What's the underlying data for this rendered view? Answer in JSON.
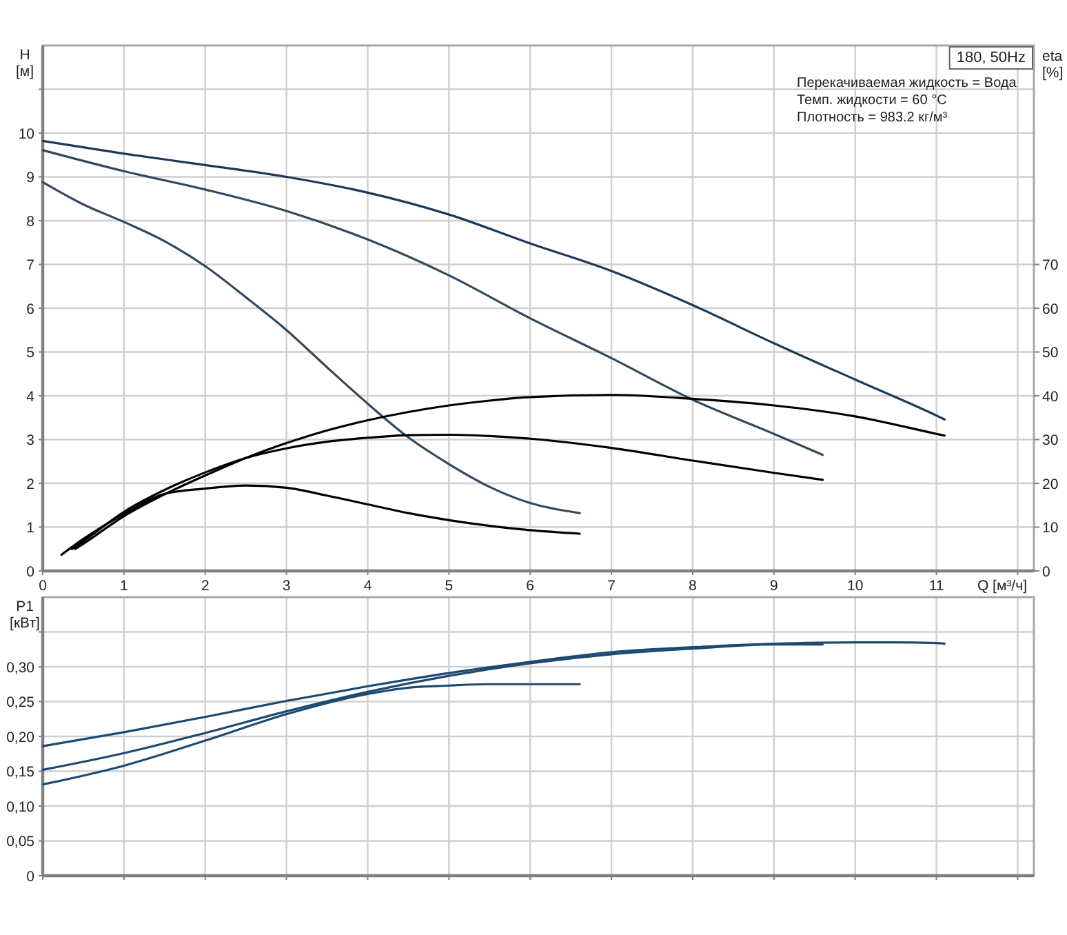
{
  "chart_data": [
    {
      "type": "line",
      "title": "180, 50Hz",
      "xlabel": "Q [м³/ч]",
      "ylabel": "H\n[м]",
      "y2label": "eta\n[%]",
      "annotations": [
        "Перекачиваемая жидкость = Вода",
        "Темп. жидкости = 60 °C",
        "Плотность = 983.2 кг/м³"
      ],
      "xlim": [
        0,
        12.2
      ],
      "xticks": [
        0,
        1,
        2,
        3,
        4,
        5,
        6,
        7,
        8,
        9,
        10,
        11,
        {
          "value": 12,
          "label": null
        }
      ],
      "ylim": [
        0,
        12
      ],
      "yticks": [
        0,
        1,
        2,
        3,
        4,
        5,
        6,
        7,
        8,
        9,
        10,
        {
          "value": 11,
          "label": null
        }
      ],
      "y2lim": [
        0,
        120
      ],
      "y2ticks": [
        0,
        10,
        20,
        30,
        40,
        50,
        60,
        70
      ],
      "grid": true,
      "series": [
        {
          "color": "#1b3a5a",
          "x": [
            0,
            1,
            2,
            3,
            4,
            5,
            6,
            7,
            8,
            9,
            10,
            11,
            11.1
          ],
          "values": [
            9.82,
            9.53,
            9.27,
            9.0,
            8.64,
            8.14,
            7.48,
            6.85,
            6.07,
            5.2,
            4.37,
            3.55,
            3.46
          ]
        },
        {
          "color": "#34495e",
          "x": [
            0,
            1,
            2,
            3,
            4,
            5,
            6,
            7,
            8,
            9,
            9.6
          ],
          "values": [
            9.61,
            9.13,
            8.71,
            8.22,
            7.57,
            6.75,
            5.77,
            4.86,
            3.91,
            3.13,
            2.65
          ]
        },
        {
          "color": "#34495e",
          "x": [
            0,
            0.5,
            1,
            1.5,
            2,
            2.5,
            3,
            3.5,
            4,
            4.5,
            5,
            5.5,
            6,
            6.61
          ],
          "values": [
            8.88,
            8.37,
            7.97,
            7.53,
            6.96,
            6.25,
            5.5,
            4.65,
            3.82,
            3.05,
            2.44,
            1.92,
            1.55,
            1.32
          ]
        },
        {
          "color": "#000000",
          "axis": "y2",
          "x": [
            0.4,
            0.5,
            1,
            1.5,
            2,
            2.5,
            3,
            3.5,
            4,
            4.5,
            5,
            5.5,
            6,
            7,
            8,
            9,
            10,
            11,
            11.1
          ],
          "values": [
            5,
            6.2,
            12.5,
            17.5,
            21.8,
            25.8,
            29.2,
            32.1,
            34.4,
            36.3,
            37.8,
            38.9,
            39.7,
            40.2,
            39.3,
            37.8,
            35.3,
            31.3,
            30.9
          ]
        },
        {
          "color": "#000000",
          "axis": "y2",
          "x": [
            0.36,
            0.5,
            1,
            1.5,
            2,
            2.5,
            3,
            3.5,
            4,
            4.5,
            5,
            5.5,
            6,
            7,
            8,
            9,
            9.6
          ],
          "values": [
            5,
            6.8,
            13.5,
            18.5,
            22.5,
            25.8,
            28,
            29.5,
            30.4,
            31,
            31.1,
            30.8,
            30.2,
            28.1,
            25.2,
            22.4,
            20.8
          ]
        },
        {
          "color": "#000000",
          "axis": "y2",
          "x": [
            0.23,
            0.5,
            1,
            1.5,
            2,
            2.5,
            3,
            3.5,
            4,
            4.5,
            5,
            5.5,
            6,
            6.61
          ],
          "values": [
            3.7,
            7.3,
            13,
            17.6,
            18.8,
            19.5,
            19,
            17.2,
            15.2,
            13.2,
            11.6,
            10.3,
            9.3,
            8.5
          ]
        }
      ]
    },
    {
      "type": "line",
      "ylabel": "P1\n[кВт]",
      "tick_labels": "y",
      "xlim": [
        0,
        12.2
      ],
      "xticks": [
        0,
        1,
        2,
        3,
        4,
        5,
        6,
        7,
        8,
        9,
        10,
        11,
        {
          "value": 12,
          "label": null
        }
      ],
      "ylim": [
        0,
        0.4
      ],
      "yticks": [
        0,
        {
          "value": 0.05,
          "label": "0,05"
        },
        {
          "value": 0.1,
          "label": "0,10"
        },
        {
          "value": 0.15,
          "label": "0,15"
        },
        {
          "value": 0.2,
          "label": "0,20"
        },
        {
          "value": 0.25,
          "label": "0,25"
        },
        {
          "value": 0.3,
          "label": "0,30"
        },
        {
          "value": 0.35,
          "label": null
        }
      ],
      "grid": true,
      "series": [
        {
          "color": "#1d4a72",
          "x": [
            0,
            1,
            2,
            3,
            4,
            5,
            6,
            7,
            8,
            9,
            10,
            10.5,
            11,
            11.1
          ],
          "values": [
            0.186,
            0.206,
            0.228,
            0.251,
            0.272,
            0.291,
            0.307,
            0.321,
            0.328,
            0.333,
            0.335,
            0.335,
            0.334,
            0.333
          ]
        },
        {
          "color": "#1d4a72",
          "x": [
            0,
            1,
            2,
            3,
            4,
            5,
            6,
            7,
            8,
            9,
            9.6
          ],
          "values": [
            0.152,
            0.176,
            0.205,
            0.236,
            0.264,
            0.287,
            0.305,
            0.318,
            0.326,
            0.332,
            0.332
          ]
        },
        {
          "color": "#1d4a72",
          "x": [
            0,
            1,
            2,
            3,
            4,
            4.5,
            5,
            5.5,
            6,
            6.61
          ],
          "values": [
            0.131,
            0.158,
            0.194,
            0.232,
            0.261,
            0.27,
            0.273,
            0.275,
            0.275,
            0.275
          ]
        }
      ]
    }
  ]
}
